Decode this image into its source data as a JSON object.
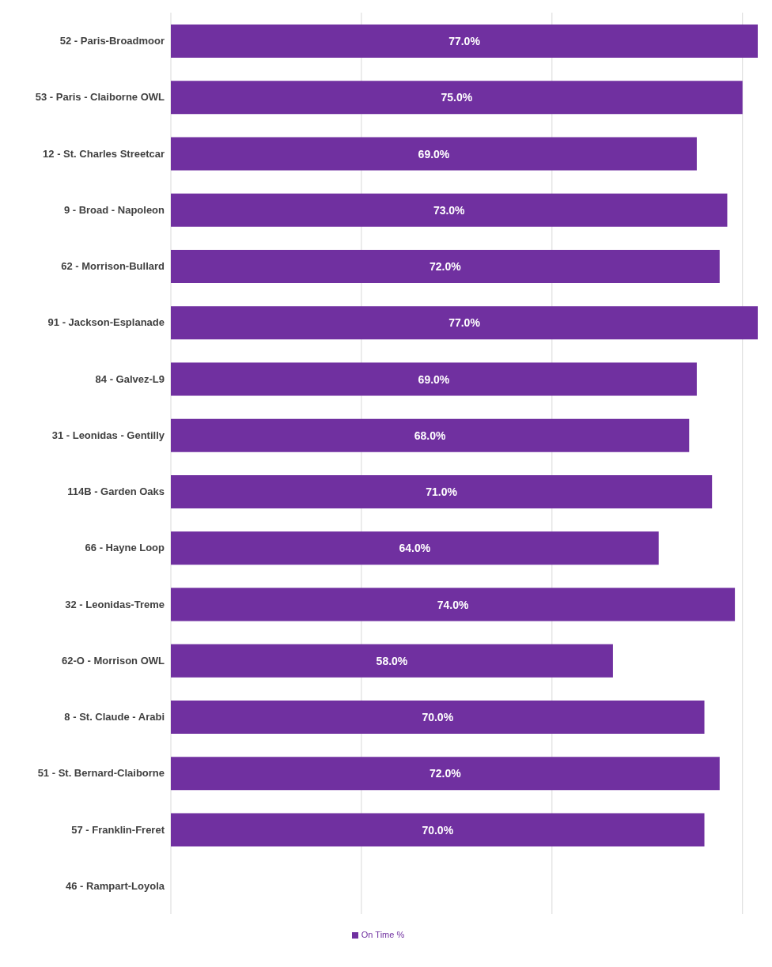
{
  "chart_data": {
    "type": "bar",
    "orientation": "horizontal",
    "categories": [
      "52 - Paris-Broadmoor",
      "53 - Paris - Claiborne OWL",
      "12 - St. Charles Streetcar",
      "9 - Broad - Napoleon",
      "62 - Morrison-Bullard",
      "91 - Jackson-Esplanade",
      "84 - Galvez-L9",
      "31 - Leonidas - Gentilly",
      "114B - Garden Oaks",
      "66 - Hayne Loop",
      "32 - Leonidas-Treme",
      "62-O - Morrison OWL",
      "8 - St. Claude - Arabi",
      "51 - St. Bernard-Claiborne",
      "57 - Franklin-Freret",
      "46 - Rampart-Loyola"
    ],
    "series": [
      {
        "name": "On Time %",
        "color": "#7030a0",
        "values": [
          77,
          75,
          69,
          73,
          72,
          77,
          69,
          68,
          71,
          64,
          74,
          58,
          70,
          72,
          70,
          null
        ],
        "value_labels": [
          "77.0%",
          "75.0%",
          "69.0%",
          "73.0%",
          "72.0%",
          "77.0%",
          "69.0%",
          "68.0%",
          "71.0%",
          "64.0%",
          "74.0%",
          "58.0%",
          "70.0%",
          "72.0%",
          "70.0%",
          null
        ]
      }
    ],
    "xticks": [
      {
        "value": 0,
        "label": null
      },
      {
        "value": 25,
        "label": null
      },
      {
        "value": 50,
        "label": null
      },
      {
        "value": 75,
        "label": null
      }
    ],
    "grid": "x",
    "tick_labels": "y",
    "legend": "bottom"
  }
}
